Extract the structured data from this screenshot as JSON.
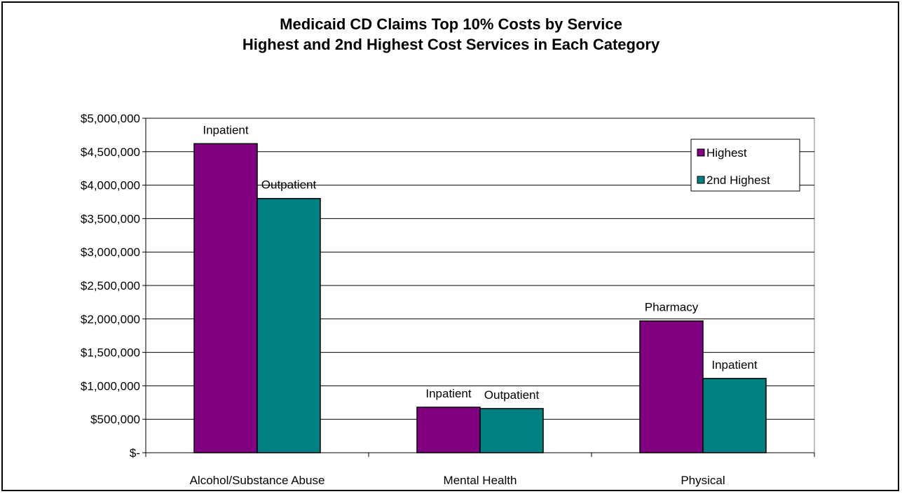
{
  "chart_data": {
    "type": "bar",
    "title": "Medicaid CD Claims Top 10% Costs by Service",
    "subtitle": "Highest and 2nd Highest Cost Services in Each Category",
    "categories": [
      "Alcohol/Substance Abuse",
      "Mental Health",
      "Physical"
    ],
    "series": [
      {
        "name": "Highest",
        "values": [
          4620000,
          680000,
          1970000
        ],
        "labels": [
          "Inpatient",
          "Inpatient",
          "Pharmacy"
        ],
        "color": "#800080"
      },
      {
        "name": "2nd Highest",
        "values": [
          3800000,
          660000,
          1110000
        ],
        "labels": [
          "Outpatient",
          "Outpatient",
          "Inpatient"
        ],
        "color": "#008080"
      }
    ],
    "ylim": [
      0,
      5000000
    ],
    "yticks": [
      0,
      500000,
      1000000,
      1500000,
      2000000,
      2500000,
      3000000,
      3500000,
      4000000,
      4500000,
      5000000
    ],
    "ytick_labels": [
      "$-",
      "$500,000",
      "$1,000,000",
      "$1,500,000",
      "$2,000,000",
      "$2,500,000",
      "$3,000,000",
      "$3,500,000",
      "$4,000,000",
      "$4,500,000",
      "$5,000,000"
    ],
    "xlabel": "",
    "ylabel": "",
    "grid": true,
    "legend": "top-right"
  }
}
